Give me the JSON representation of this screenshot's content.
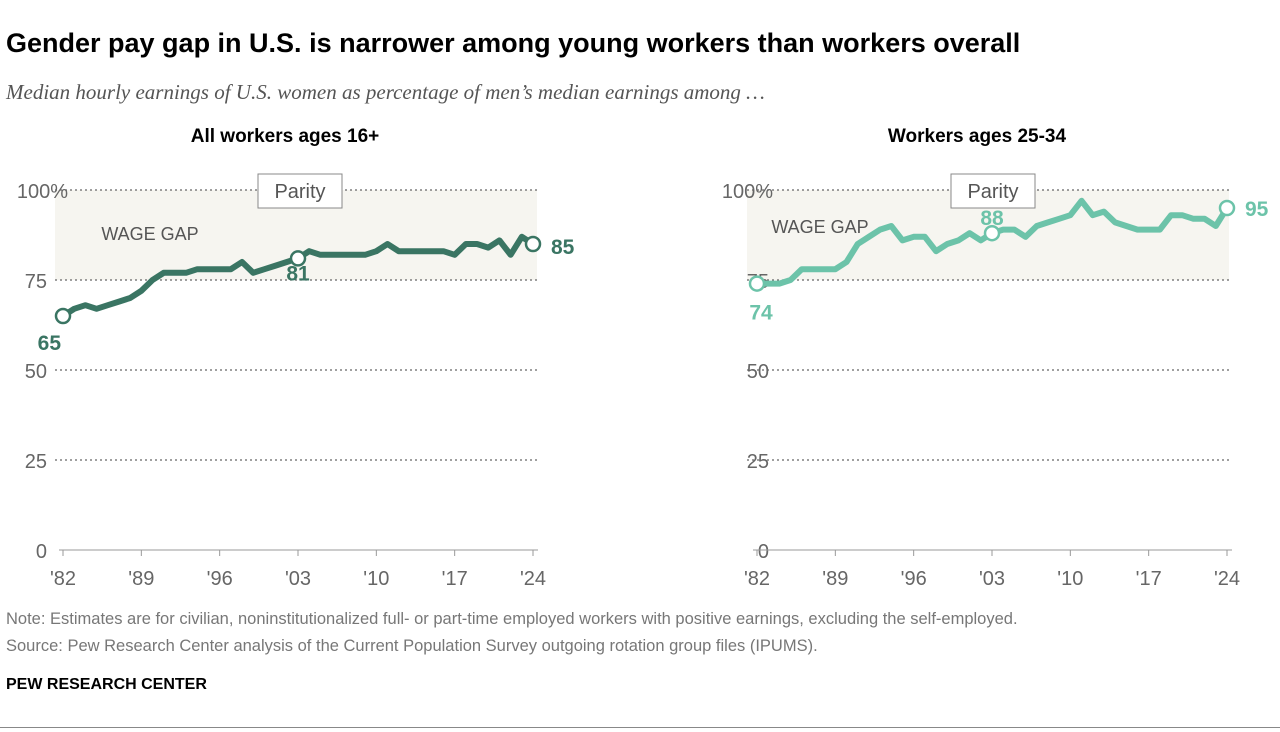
{
  "title": "Gender pay gap in U.S. is narrower among young workers than workers overall",
  "subtitle": "Median hourly earnings of U.S. women as percentage of men’s median earnings among …",
  "note": "Note: Estimates are for civilian, noninstitutionalized full- or part-time employed workers with positive earnings, excluding the self-employed.",
  "source": "Source: Pew Research Center analysis of the Current Population Survey outgoing rotation group files (IPUMS).",
  "brand": "PEW RESEARCH CENTER",
  "chart_data": [
    {
      "type": "line",
      "title": "All workers ages 16+",
      "color": "#3a7563",
      "ylim": [
        0,
        100
      ],
      "yticks": [
        0,
        25,
        50,
        75,
        100
      ],
      "ytick_labels": [
        "0",
        "25",
        "50",
        "75",
        "100%"
      ],
      "xticks": [
        1982,
        1989,
        1996,
        2003,
        2010,
        2017,
        2024
      ],
      "xtick_labels": [
        "'82",
        "'89",
        "'96",
        "'03",
        "'10",
        "'17",
        "'24"
      ],
      "band_label": "WAGE GAP",
      "parity_label": "Parity",
      "grid": "dotted",
      "x_start": 1982,
      "values": [
        65,
        67,
        68,
        67,
        68,
        69,
        70,
        72,
        75,
        77,
        77,
        77,
        78,
        78,
        78,
        78,
        80,
        77,
        78,
        79,
        80,
        81,
        83,
        82,
        82,
        82,
        82,
        82,
        83,
        85,
        83,
        83,
        83,
        83,
        83,
        82,
        85,
        85,
        84,
        86,
        82,
        87,
        85
      ],
      "labeled_points": [
        {
          "year": 1982,
          "value": 65,
          "label": "65"
        },
        {
          "year": 2003,
          "value": 81,
          "label": "81"
        },
        {
          "year": 2024,
          "value": 85,
          "label": "85"
        }
      ]
    },
    {
      "type": "line",
      "title": "Workers ages 25-34",
      "color": "#6cc3a9",
      "ylim": [
        0,
        100
      ],
      "yticks": [
        0,
        25,
        50,
        75,
        100
      ],
      "ytick_labels": [
        "0",
        "25",
        "50",
        "75",
        "100%"
      ],
      "xticks": [
        1982,
        1989,
        1996,
        2003,
        2010,
        2017,
        2024
      ],
      "xtick_labels": [
        "'82",
        "'89",
        "'96",
        "'03",
        "'10",
        "'17",
        "'24"
      ],
      "band_label": "WAGE GAP",
      "parity_label": "Parity",
      "grid": "dotted",
      "x_start": 1982,
      "values": [
        74,
        74,
        74,
        75,
        78,
        78,
        78,
        78,
        80,
        85,
        87,
        89,
        90,
        86,
        87,
        87,
        83,
        85,
        86,
        88,
        86,
        88,
        89,
        89,
        87,
        90,
        91,
        92,
        93,
        97,
        93,
        94,
        91,
        90,
        89,
        89,
        89,
        93,
        93,
        92,
        92,
        90,
        95
      ],
      "labeled_points": [
        {
          "year": 1982,
          "value": 74,
          "label": "74"
        },
        {
          "year": 2003,
          "value": 88,
          "label": "88"
        },
        {
          "year": 2024,
          "value": 95,
          "label": "95"
        }
      ]
    }
  ]
}
